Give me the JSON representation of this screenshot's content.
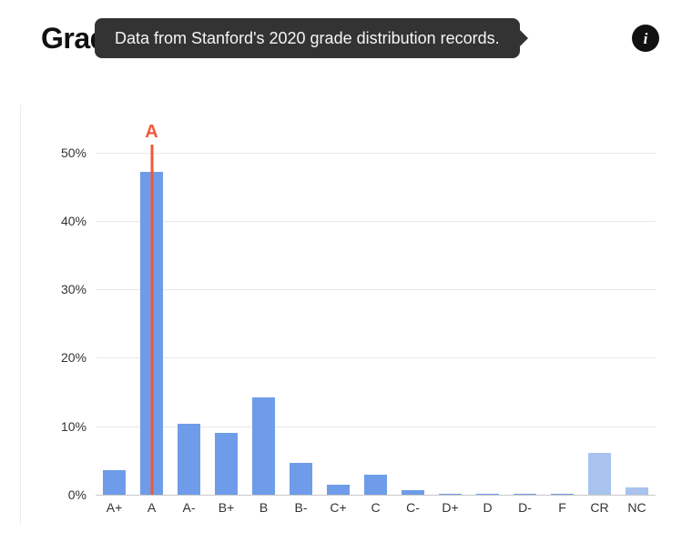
{
  "title": "Grade Distribution",
  "tooltip": {
    "text": "Data from Stanford's 2020 grade distribution records.",
    "bg_color": "#333333",
    "text_color": "#f5f5f5",
    "fontsize": 18
  },
  "info_icon": {
    "glyph": "i",
    "bg": "#111111",
    "fg": "#ffffff"
  },
  "chart": {
    "type": "bar",
    "categories": [
      "A+",
      "A",
      "A-",
      "B+",
      "B",
      "B-",
      "C+",
      "C",
      "C-",
      "D+",
      "D",
      "D-",
      "F",
      "CR",
      "NC"
    ],
    "values": [
      3.6,
      47.1,
      10.3,
      9.0,
      14.2,
      4.7,
      1.5,
      2.9,
      0.7,
      0.2,
      0.15,
      0.1,
      0.2,
      6.1,
      1.0
    ],
    "bar_colors": [
      "#6f9ce8",
      "#6f9ce8",
      "#6f9ce8",
      "#6f9ce8",
      "#6f9ce8",
      "#6f9ce8",
      "#6f9ce8",
      "#6f9ce8",
      "#6f9ce8",
      "#6f9ce8",
      "#6f9ce8",
      "#6f9ce8",
      "#6f9ce8",
      "#a9c3ef",
      "#a9c3ef"
    ],
    "bar_width_ratio": 0.62,
    "ylim": [
      0,
      53
    ],
    "yticks": [
      0,
      10,
      20,
      30,
      40,
      50
    ],
    "ytick_labels": [
      "0%",
      "10%",
      "20%",
      "30%",
      "40%",
      "50%"
    ],
    "ytick_fontsize": 14,
    "xtick_fontsize": 14,
    "background_color": "#ffffff",
    "grid_color": "#e8e8e8",
    "axis_color": "#c8c8c8",
    "highlight": {
      "category": "A",
      "label": "A",
      "line_color": "#f15a3b",
      "label_color": "#f15a3b",
      "line_width": 3,
      "extra_height_pct": 4,
      "label_fontsize": 20,
      "label_fontweight": 800
    }
  }
}
